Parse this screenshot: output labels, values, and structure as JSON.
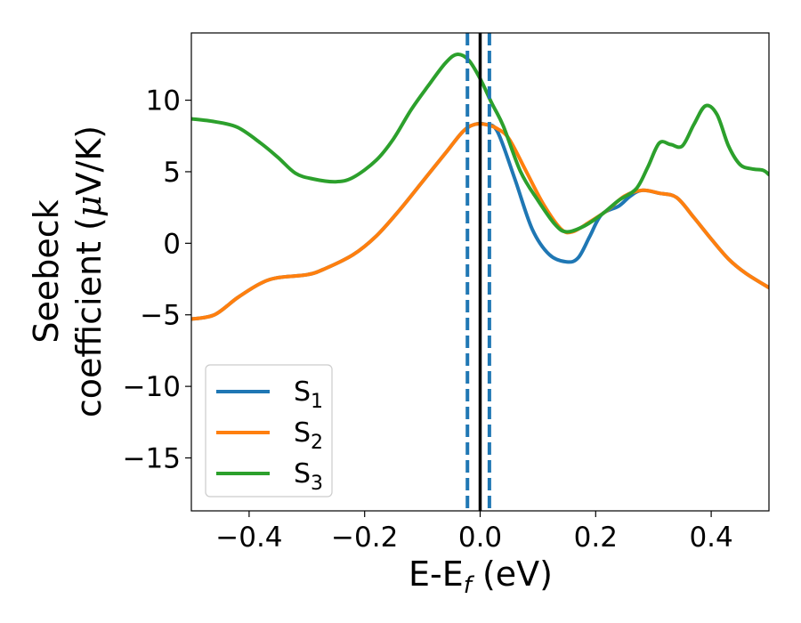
{
  "chart_data": {
    "type": "line",
    "title": "",
    "xlabel": {
      "main": "E-E",
      "sub": "f",
      "unit": " (eV)"
    },
    "ylabel": {
      "line1": "Seebeck",
      "line2_prefix": "coefficient  (",
      "mu": "μ",
      "line2_suffix": "V/K)"
    },
    "xlim": [
      -0.5,
      0.5
    ],
    "ylim": [
      -18.7,
      14.7
    ],
    "grid": false,
    "legend_position": "lower-left",
    "x_ticks": [
      {
        "value": -0.4,
        "label": "−0.4"
      },
      {
        "value": -0.2,
        "label": "−0.2"
      },
      {
        "value": 0.0,
        "label": "0.0"
      },
      {
        "value": 0.2,
        "label": "0.2"
      },
      {
        "value": 0.4,
        "label": "0.4"
      }
    ],
    "y_ticks": [
      {
        "value": 10,
        "label": "10"
      },
      {
        "value": 5,
        "label": "5"
      },
      {
        "value": 0,
        "label": "0"
      },
      {
        "value": -5,
        "label": "−5"
      },
      {
        "value": -10,
        "label": "−10"
      },
      {
        "value": -15,
        "label": "−15"
      }
    ],
    "vlines": [
      {
        "x": -0.022,
        "style": "dashed",
        "color": "#1f77b4"
      },
      {
        "x": 0.0,
        "style": "solid",
        "color": "#000000"
      },
      {
        "x": 0.016,
        "style": "dashed",
        "color": "#1f77b4"
      }
    ],
    "series": [
      {
        "name": "S",
        "sub": "1",
        "color": "#1f77b4",
        "points": [
          [
            -0.5,
            -5.3
          ],
          [
            -0.46,
            -5.0
          ],
          [
            -0.42,
            -3.8
          ],
          [
            -0.38,
            -2.8
          ],
          [
            -0.35,
            -2.4
          ],
          [
            -0.3,
            -2.2
          ],
          [
            -0.27,
            -1.8
          ],
          [
            -0.22,
            -0.8
          ],
          [
            -0.18,
            0.5
          ],
          [
            -0.14,
            2.3
          ],
          [
            -0.1,
            4.3
          ],
          [
            -0.06,
            6.3
          ],
          [
            -0.03,
            7.8
          ],
          [
            -0.01,
            8.3
          ],
          [
            0.01,
            8.3
          ],
          [
            0.03,
            7.8
          ],
          [
            0.06,
            4.5
          ],
          [
            0.09,
            1.0
          ],
          [
            0.12,
            -0.8
          ],
          [
            0.15,
            -1.3
          ],
          [
            0.17,
            -1.0
          ],
          [
            0.19,
            0.5
          ],
          [
            0.21,
            2.0
          ],
          [
            0.24,
            2.6
          ],
          [
            0.26,
            3.3
          ],
          [
            0.28,
            3.7
          ],
          [
            0.31,
            3.5
          ],
          [
            0.34,
            3.2
          ],
          [
            0.37,
            1.8
          ],
          [
            0.4,
            0.3
          ],
          [
            0.43,
            -1.1
          ],
          [
            0.46,
            -2.1
          ],
          [
            0.5,
            -3.1
          ]
        ]
      },
      {
        "name": "S",
        "sub": "2",
        "color": "#ff7f0e",
        "points": [
          [
            -0.5,
            -5.3
          ],
          [
            -0.46,
            -5.0
          ],
          [
            -0.42,
            -3.8
          ],
          [
            -0.38,
            -2.8
          ],
          [
            -0.35,
            -2.4
          ],
          [
            -0.3,
            -2.2
          ],
          [
            -0.27,
            -1.8
          ],
          [
            -0.22,
            -0.8
          ],
          [
            -0.18,
            0.5
          ],
          [
            -0.14,
            2.3
          ],
          [
            -0.1,
            4.3
          ],
          [
            -0.06,
            6.3
          ],
          [
            -0.03,
            7.8
          ],
          [
            -0.01,
            8.3
          ],
          [
            0.01,
            8.3
          ],
          [
            0.03,
            8.0
          ],
          [
            0.05,
            7.3
          ],
          [
            0.08,
            5.0
          ],
          [
            0.11,
            2.7
          ],
          [
            0.14,
            1.0
          ],
          [
            0.16,
            0.8
          ],
          [
            0.19,
            1.5
          ],
          [
            0.22,
            2.3
          ],
          [
            0.25,
            3.3
          ],
          [
            0.28,
            3.7
          ],
          [
            0.31,
            3.5
          ],
          [
            0.34,
            3.2
          ],
          [
            0.37,
            1.8
          ],
          [
            0.4,
            0.3
          ],
          [
            0.43,
            -1.1
          ],
          [
            0.46,
            -2.1
          ],
          [
            0.5,
            -3.1
          ]
        ]
      },
      {
        "name": "S",
        "sub": "3",
        "color": "#2ca02c",
        "points": [
          [
            -0.5,
            8.7
          ],
          [
            -0.46,
            8.5
          ],
          [
            -0.42,
            8.1
          ],
          [
            -0.38,
            7.0
          ],
          [
            -0.35,
            6.0
          ],
          [
            -0.32,
            4.9
          ],
          [
            -0.29,
            4.5
          ],
          [
            -0.25,
            4.3
          ],
          [
            -0.22,
            4.6
          ],
          [
            -0.18,
            5.8
          ],
          [
            -0.15,
            7.3
          ],
          [
            -0.12,
            9.3
          ],
          [
            -0.09,
            11.0
          ],
          [
            -0.06,
            12.6
          ],
          [
            -0.04,
            13.2
          ],
          [
            -0.02,
            12.8
          ],
          [
            0.0,
            11.5
          ],
          [
            0.02,
            9.8
          ],
          [
            0.04,
            8.2
          ],
          [
            0.07,
            5.0
          ],
          [
            0.1,
            3.0
          ],
          [
            0.13,
            1.3
          ],
          [
            0.15,
            0.8
          ],
          [
            0.18,
            1.2
          ],
          [
            0.21,
            2.0
          ],
          [
            0.24,
            3.0
          ],
          [
            0.27,
            3.8
          ],
          [
            0.29,
            5.3
          ],
          [
            0.31,
            7.0
          ],
          [
            0.33,
            6.9
          ],
          [
            0.35,
            6.8
          ],
          [
            0.37,
            8.3
          ],
          [
            0.39,
            9.6
          ],
          [
            0.41,
            9.0
          ],
          [
            0.43,
            6.8
          ],
          [
            0.45,
            5.5
          ],
          [
            0.47,
            5.2
          ],
          [
            0.49,
            5.1
          ],
          [
            0.5,
            4.8
          ]
        ]
      }
    ]
  }
}
